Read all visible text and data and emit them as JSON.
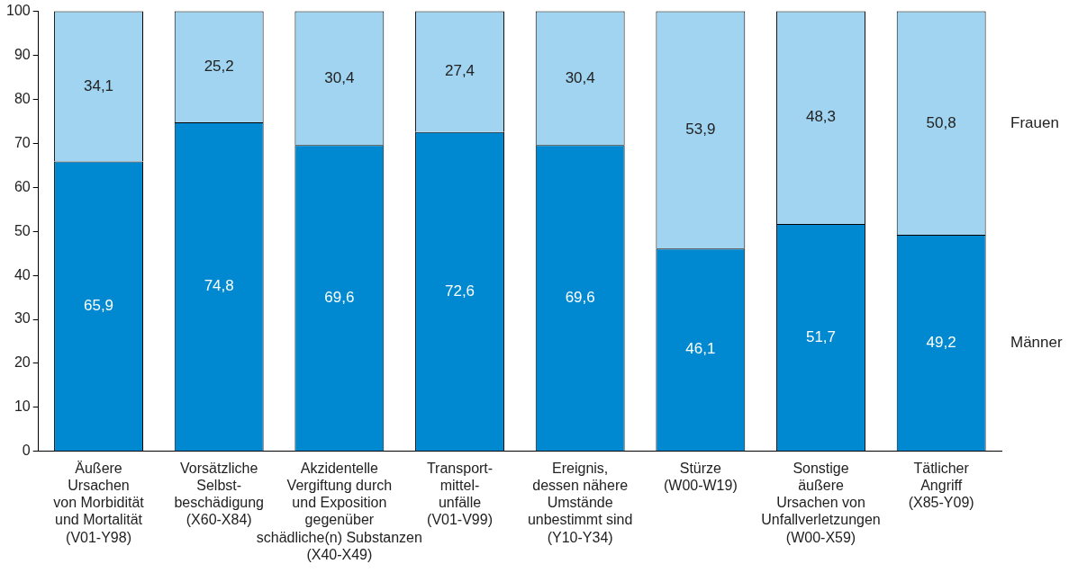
{
  "chart_data": {
    "type": "bar",
    "stacked": true,
    "legend": false,
    "grid": false,
    "categories": [
      "Äußere\nUrsachen\nvon Morbidität\nund Mortalität\n(V01-Y98)",
      "Vorsätzliche\nSelbst-\nbeschädigung\n(X60-X84)",
      "Akzidentelle\nVergiftung durch\nund Exposition\ngegenüber\nschädliche(n) Substanzen\n(X40-X49)",
      "Transport-\nmittel-\nunfälle\n(V01-V99)",
      "Ereignis,\ndessen nähere\nUmstände\nunbestimmt sind\n(Y10-Y34)",
      "Stürze\n(W00-W19)",
      "Sonstige\näußere\nUrsachen von\nUnfallverletzungen\n(W00-X59)",
      "Tätlicher\nAngriff\n(X85-Y09)"
    ],
    "series": [
      {
        "name": "Männer",
        "color": "#0088d1",
        "values": [
          65.9,
          74.8,
          69.6,
          72.6,
          69.6,
          46.1,
          51.7,
          49.2
        ],
        "value_labels": [
          "65,9",
          "74,8",
          "69,6",
          "72,6",
          "69,6",
          "46,1",
          "51,7",
          "49,2"
        ]
      },
      {
        "name": "Frauen",
        "color": "#a0d4f0",
        "values": [
          34.1,
          25.2,
          30.4,
          27.4,
          30.4,
          53.9,
          48.3,
          50.8
        ],
        "value_labels": [
          "34,1",
          "25,2",
          "30,4",
          "27,4",
          "30,4",
          "53,9",
          "48,3",
          "50,8"
        ]
      }
    ],
    "ylim": [
      0,
      100
    ],
    "yticks": [
      0,
      10,
      20,
      30,
      40,
      50,
      60,
      70,
      80,
      90,
      100
    ]
  }
}
